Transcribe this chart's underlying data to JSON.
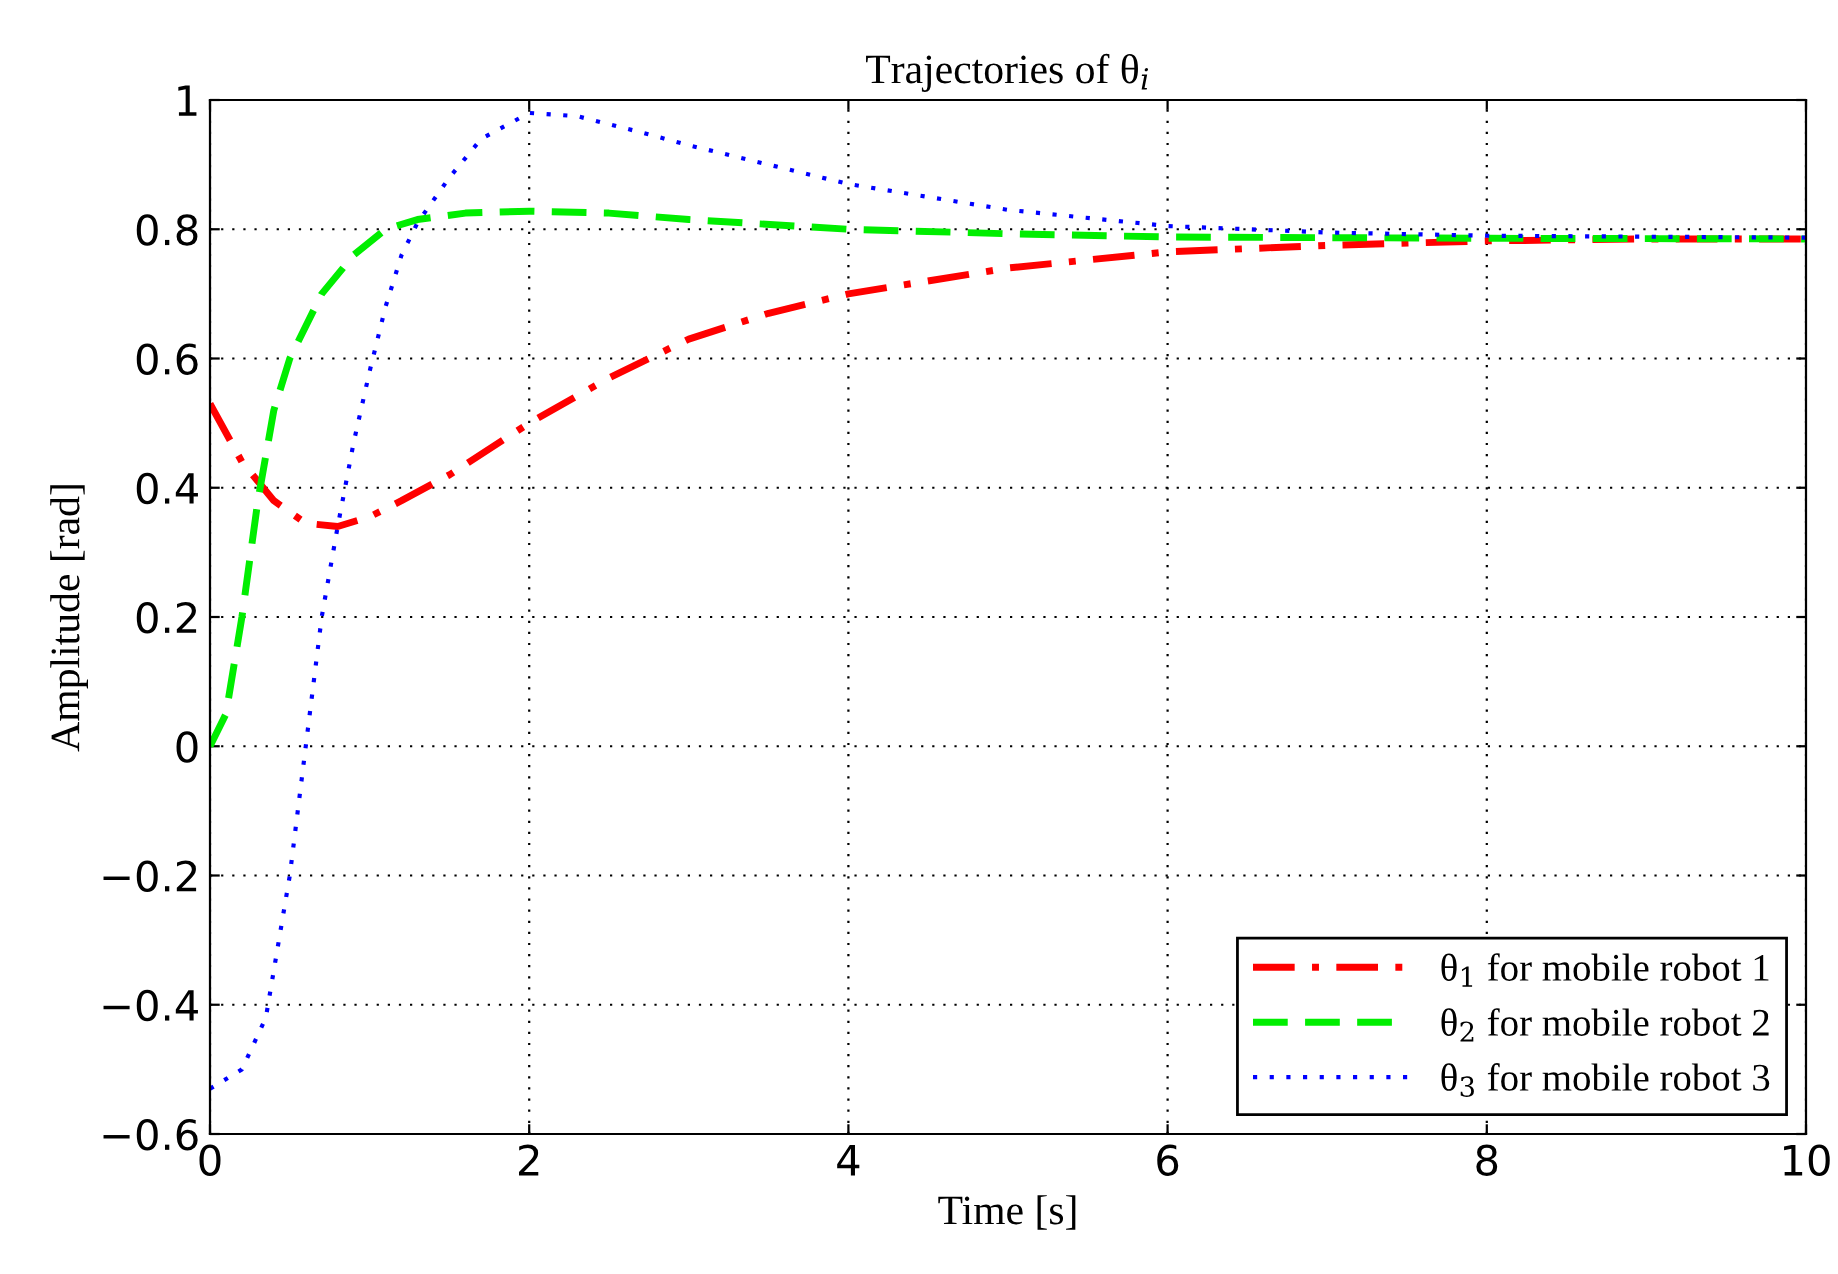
{
  "chart_data": {
    "type": "line",
    "title": "Trajectories of θ$_{i}$",
    "xlabel": "Time [s]",
    "ylabel": "Amplitude [rad]",
    "xlim": [
      0,
      10
    ],
    "ylim": [
      -0.6,
      1
    ],
    "xticks": [
      0,
      2,
      4,
      6,
      8,
      10
    ],
    "yticks": [
      {
        "value": -0.6,
        "label": "−0.6"
      },
      {
        "value": -0.4,
        "label": "−0.4"
      },
      {
        "value": -0.2,
        "label": "−0.2"
      },
      0,
      0.2,
      0.4,
      0.6,
      0.8,
      1
    ],
    "grid": true,
    "legend": "bottom right",
    "series": [
      {
        "name": "θ$_{1}$ for mobile robot 1",
        "color": "#ff0000",
        "line_style": "dashdot",
        "x": [
          0,
          0.2,
          0.4,
          0.6,
          0.8,
          1.0,
          1.2,
          1.5,
          2,
          2.5,
          3,
          3.5,
          4,
          5,
          6,
          7,
          8,
          9,
          10
        ],
        "values": [
          0.53,
          0.44,
          0.38,
          0.345,
          0.34,
          0.355,
          0.38,
          0.42,
          0.5,
          0.57,
          0.63,
          0.67,
          0.7,
          0.74,
          0.765,
          0.775,
          0.782,
          0.785,
          0.785
        ]
      },
      {
        "name": "θ$_{2}$ for mobile robot 2",
        "color": "#00ee00",
        "line_style": "dashed",
        "x": [
          0,
          0.1,
          0.2,
          0.3,
          0.4,
          0.5,
          0.7,
          0.9,
          1.1,
          1.3,
          1.6,
          2,
          2.5,
          3,
          4,
          5,
          6,
          8,
          10
        ],
        "values": [
          0,
          0.05,
          0.2,
          0.38,
          0.52,
          0.6,
          0.7,
          0.76,
          0.8,
          0.815,
          0.825,
          0.828,
          0.825,
          0.815,
          0.8,
          0.793,
          0.788,
          0.786,
          0.785
        ]
      },
      {
        "name": "θ$_{3}$ for mobile robot 3",
        "color": "#0000ff",
        "line_style": "dotted",
        "x": [
          0,
          0.2,
          0.35,
          0.5,
          0.6,
          0.7,
          0.8,
          0.9,
          1.0,
          1.1,
          1.2,
          1.3,
          1.5,
          1.7,
          2.0,
          2.3,
          2.7,
          3,
          3.5,
          4,
          4.5,
          5,
          6,
          7,
          8,
          10
        ],
        "values": [
          -0.53,
          -0.5,
          -0.42,
          -0.2,
          0.0,
          0.2,
          0.34,
          0.47,
          0.58,
          0.68,
          0.76,
          0.81,
          0.88,
          0.94,
          0.98,
          0.975,
          0.95,
          0.93,
          0.9,
          0.87,
          0.85,
          0.83,
          0.805,
          0.795,
          0.79,
          0.787
        ]
      }
    ]
  }
}
